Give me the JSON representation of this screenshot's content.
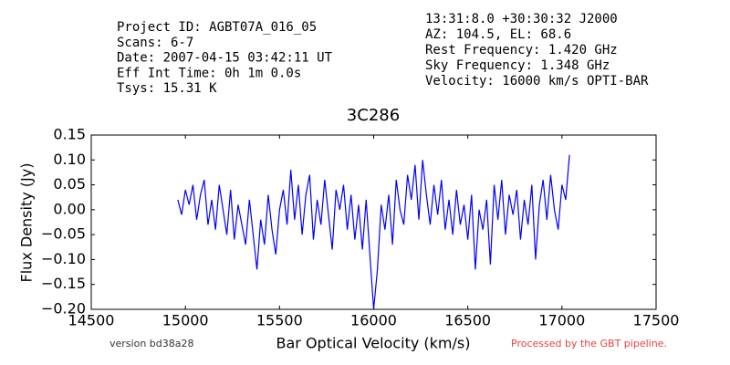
{
  "chart_data": {
    "type": "line",
    "title": "3C286",
    "header_left": [
      "Project ID: AGBT07A_016_05",
      "Scans: 6-7",
      "Date: 2007-04-15 03:42:11 UT",
      "Eff Int Time: 0h 1m 0.0s",
      "Tsys: 15.31 K"
    ],
    "header_right": [
      "13:31:8.0 +30:30:32 J2000",
      "AZ: 104.5, EL: 68.6",
      "Rest Frequency:   1.420 GHz",
      "Sky Frequency:    1.348 GHz",
      "Velocity: 16000 km/s OPTI-BAR"
    ],
    "xlabel": "Bar Optical Velocity (km/s)",
    "ylabel": "Flux Density (Jy)",
    "version_note": "version bd38a28",
    "pipeline_note": "Processed by the GBT pipeline.",
    "xlim": [
      14500,
      17500
    ],
    "xticks": [
      14500,
      15000,
      15500,
      16000,
      16500,
      17000,
      17500
    ],
    "ylim": [
      -0.2,
      0.15
    ],
    "yticks": [
      {
        "value": -0.2,
        "label": "−0.20"
      },
      {
        "value": -0.15,
        "label": "−0.15"
      },
      {
        "value": -0.1,
        "label": "−0.10"
      },
      {
        "value": -0.05,
        "label": "−0.05"
      },
      {
        "value": 0,
        "label": "0.00"
      },
      {
        "value": 0.05,
        "label": "0.05"
      },
      {
        "value": 0.1,
        "label": "0.10"
      },
      {
        "value": 0.15,
        "label": "0.15"
      }
    ],
    "x": [
      14960,
      14980,
      15000,
      15020,
      15040,
      15060,
      15080,
      15100,
      15120,
      15140,
      15160,
      15180,
      15200,
      15220,
      15240,
      15260,
      15280,
      15300,
      15320,
      15340,
      15360,
      15380,
      15400,
      15420,
      15440,
      15460,
      15480,
      15500,
      15520,
      15540,
      15560,
      15580,
      15600,
      15620,
      15640,
      15660,
      15680,
      15700,
      15720,
      15740,
      15760,
      15780,
      15800,
      15820,
      15840,
      15860,
      15880,
      15900,
      15920,
      15940,
      15960,
      15980,
      16000,
      16020,
      16040,
      16060,
      16080,
      16100,
      16120,
      16140,
      16160,
      16180,
      16200,
      16220,
      16240,
      16260,
      16280,
      16300,
      16320,
      16340,
      16360,
      16380,
      16400,
      16420,
      16440,
      16460,
      16480,
      16500,
      16520,
      16540,
      16560,
      16580,
      16600,
      16620,
      16640,
      16660,
      16680,
      16700,
      16720,
      16740,
      16760,
      16780,
      16800,
      16820,
      16840,
      16860,
      16880,
      16900,
      16920,
      16940,
      16960,
      16980,
      17000,
      17020,
      17040
    ],
    "series": [
      {
        "name": "3C286",
        "color": "#0000ff",
        "values": [
          0.02,
          -0.01,
          0.04,
          0.01,
          0.05,
          -0.02,
          0.03,
          0.06,
          -0.03,
          0.02,
          -0.04,
          0.05,
          0.0,
          -0.05,
          0.04,
          -0.06,
          0.01,
          -0.03,
          -0.07,
          0.02,
          -0.05,
          -0.12,
          -0.02,
          -0.07,
          0.03,
          -0.04,
          -0.09,
          0.0,
          0.04,
          -0.03,
          0.08,
          -0.02,
          0.05,
          -0.05,
          0.03,
          0.07,
          -0.06,
          0.02,
          -0.03,
          0.06,
          -0.01,
          -0.08,
          0.04,
          0.0,
          0.05,
          -0.04,
          0.03,
          -0.06,
          0.01,
          -0.08,
          0.02,
          -0.09,
          -0.2,
          -0.12,
          0.01,
          -0.04,
          0.03,
          -0.07,
          0.06,
          0.0,
          -0.03,
          0.07,
          0.02,
          0.09,
          -0.02,
          0.1,
          0.03,
          -0.03,
          0.05,
          -0.01,
          0.06,
          -0.04,
          0.02,
          -0.05,
          0.04,
          -0.03,
          0.01,
          -0.06,
          0.03,
          -0.12,
          0.0,
          -0.04,
          0.02,
          -0.11,
          0.05,
          -0.02,
          0.06,
          -0.05,
          0.03,
          -0.01,
          0.04,
          -0.06,
          0.02,
          -0.03,
          0.05,
          -0.1,
          0.01,
          0.06,
          -0.02,
          0.07,
          0.0,
          -0.04,
          0.05,
          0.02,
          0.11
        ]
      }
    ]
  }
}
